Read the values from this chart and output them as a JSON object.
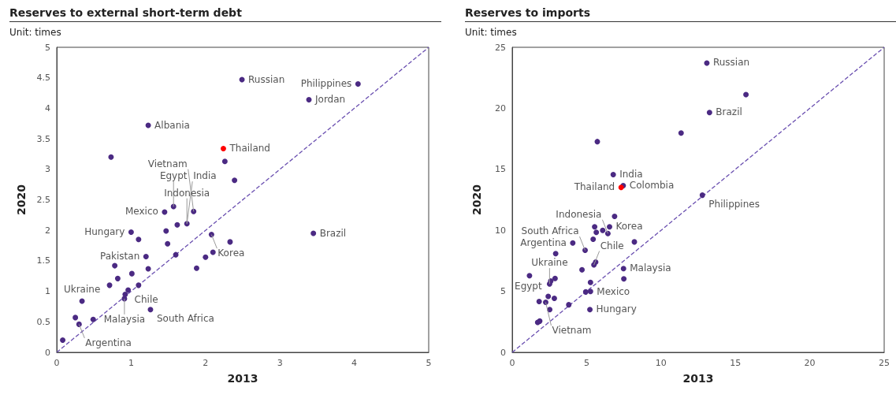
{
  "chart_data": [
    {
      "type": "scatter",
      "title": "Reserves to external short-term debt",
      "subtitle": "Unit: times",
      "xlabel": "2013",
      "ylabel": "2020",
      "xlim": [
        0,
        5
      ],
      "ylim": [
        0,
        5
      ],
      "xticks": [
        0,
        1,
        2,
        3,
        4,
        5
      ],
      "yticks": [
        0,
        0.5,
        1,
        1.5,
        2,
        2.5,
        3,
        3.5,
        4,
        4.5,
        5
      ],
      "grid": false,
      "marker": "circle",
      "series": [
        {
          "color": "#4b2a83",
          "x": [
            2.49,
            4.05,
            3.39,
            1.23,
            0.73,
            2.26,
            2.39,
            3.45,
            1.57,
            1.45,
            1.84,
            1.62,
            1.75,
            1.0,
            2.08,
            1.1,
            1.47,
            1.49,
            2.33,
            2.1,
            2.0,
            1.6,
            1.2,
            1.88,
            1.23,
            0.78,
            1.01,
            0.82,
            0.71,
            1.1,
            0.96,
            0.92,
            0.91,
            0.34,
            1.26,
            0.25,
            0.3,
            0.49,
            0.08
          ],
          "values": [
            4.47,
            4.4,
            4.14,
            3.72,
            3.2,
            3.13,
            2.82,
            1.95,
            2.39,
            2.3,
            2.31,
            2.09,
            2.11,
            1.97,
            1.93,
            1.85,
            1.99,
            1.78,
            1.81,
            1.64,
            1.56,
            1.6,
            1.57,
            1.38,
            1.37,
            1.42,
            1.29,
            1.21,
            1.1,
            1.1,
            1.02,
            0.95,
            0.88,
            0.84,
            0.7,
            0.57,
            0.46,
            0.54,
            0.2
          ]
        },
        {
          "color": "#ff0000",
          "x": [
            2.24
          ],
          "values": [
            3.34
          ]
        },
        {
          "type": "line",
          "color": "#6a4fb0",
          "line_style": "dashed",
          "marker": "none",
          "x": [
            0,
            5
          ],
          "values": [
            0,
            5
          ]
        }
      ],
      "annotations": [
        {
          "text": "Russian",
          "x": 2.49,
          "y": 4.47
        },
        {
          "text": "Philippines",
          "x": 4.05,
          "y": 4.4
        },
        {
          "text": "Jordan",
          "x": 3.39,
          "y": 4.14
        },
        {
          "text": "Albania",
          "x": 1.23,
          "y": 3.72
        },
        {
          "text": "Thailand",
          "x": 2.24,
          "y": 3.34
        },
        {
          "text": "Brazil",
          "x": 3.45,
          "y": 1.95
        },
        {
          "text": "Indonesia",
          "x": 1.75,
          "y": 2.11
        },
        {
          "text": "Egypt",
          "x": 1.57,
          "y": 2.39
        },
        {
          "text": "Vietnam",
          "x": 1.84,
          "y": 2.31
        },
        {
          "text": "Mexico",
          "x": 1.45,
          "y": 2.3
        },
        {
          "text": "India",
          "x": 1.75,
          "y": 2.11
        },
        {
          "text": "Hungary",
          "x": 1.0,
          "y": 1.97
        },
        {
          "text": "Korea",
          "x": 2.08,
          "y": 1.93
        },
        {
          "text": "Pakistan",
          "x": 1.2,
          "y": 1.57
        },
        {
          "text": "Ukraine",
          "x": 0.34,
          "y": 0.84
        },
        {
          "text": "Chile",
          "x": 0.96,
          "y": 1.02
        },
        {
          "text": "Malaysia",
          "x": 0.91,
          "y": 0.88
        },
        {
          "text": "South Africa",
          "x": 1.26,
          "y": 0.7
        },
        {
          "text": "Argentina",
          "x": 0.3,
          "y": 0.46
        }
      ]
    },
    {
      "type": "scatter",
      "title": "Reserves to imports",
      "subtitle": "Unit: times",
      "xlabel": "2013",
      "ylabel": "2020",
      "xlim": [
        0,
        25
      ],
      "ylim": [
        0,
        25
      ],
      "xticks": [
        0,
        5,
        10,
        15,
        20,
        25
      ],
      "yticks": [
        0,
        5,
        10,
        15,
        20,
        25
      ],
      "grid": false,
      "marker": "circle",
      "series": [
        {
          "color": "#4b2a83",
          "x": [
            5.72,
            11.35,
            6.79,
            7.46,
            6.88,
            5.54,
            6.54,
            6.08,
            5.65,
            6.43,
            5.44,
            8.21,
            4.07,
            4.9,
            2.92,
            5.61,
            5.49,
            7.48,
            4.69,
            1.16,
            2.88,
            2.59,
            2.51,
            7.5,
            5.26,
            5.26,
            4.94,
            2.42,
            2.83,
            1.81,
            2.25,
            3.8,
            2.52,
            5.22,
            1.85,
            1.71,
            13.08,
            15.71,
            13.26,
            12.78
          ],
          "values": [
            17.27,
            17.98,
            14.57,
            13.66,
            11.14,
            10.29,
            10.29,
            10.0,
            9.83,
            9.74,
            9.27,
            9.05,
            8.96,
            8.36,
            8.09,
            7.4,
            7.17,
            6.86,
            6.77,
            6.28,
            6.06,
            5.84,
            5.61,
            6.02,
            5.73,
            4.99,
            4.95,
            4.59,
            4.43,
            4.17,
            4.1,
            3.9,
            3.5,
            3.5,
            2.56,
            2.45,
            23.71,
            21.12,
            19.65,
            12.88
          ]
        },
        {
          "color": "#ff0000",
          "x": [
            7.32
          ],
          "values": [
            13.52
          ]
        },
        {
          "type": "line",
          "color": "#6a4fb0",
          "line_style": "dashed",
          "marker": "none",
          "x": [
            0,
            25
          ],
          "values": [
            0,
            25
          ]
        }
      ],
      "annotations": [
        {
          "text": "Russian",
          "x": 13.08,
          "y": 23.71
        },
        {
          "text": "Brazil",
          "x": 13.26,
          "y": 19.65
        },
        {
          "text": "India",
          "x": 6.79,
          "y": 14.57
        },
        {
          "text": "Colombia",
          "x": 7.46,
          "y": 13.66
        },
        {
          "text": "Thailand",
          "x": 7.32,
          "y": 13.52
        },
        {
          "text": "Philippines",
          "x": 12.78,
          "y": 12.88
        },
        {
          "text": "Korea",
          "x": 6.54,
          "y": 10.29
        },
        {
          "text": "Argentina",
          "x": 4.07,
          "y": 8.96
        },
        {
          "text": "Indonesia",
          "x": 6.43,
          "y": 9.74
        },
        {
          "text": "South Africa",
          "x": 4.9,
          "y": 8.36
        },
        {
          "text": "Ukraine",
          "x": 2.51,
          "y": 5.61
        },
        {
          "text": "Chile",
          "x": 5.49,
          "y": 7.17
        },
        {
          "text": "Malaysia",
          "x": 7.48,
          "y": 6.86
        },
        {
          "text": "Egypt",
          "x": 2.42,
          "y": 4.59
        },
        {
          "text": "Mexico",
          "x": 5.26,
          "y": 5.73
        },
        {
          "text": "Hungary",
          "x": 5.22,
          "y": 3.5
        },
        {
          "text": "Vietnam",
          "x": 2.25,
          "y": 4.1
        }
      ]
    }
  ]
}
